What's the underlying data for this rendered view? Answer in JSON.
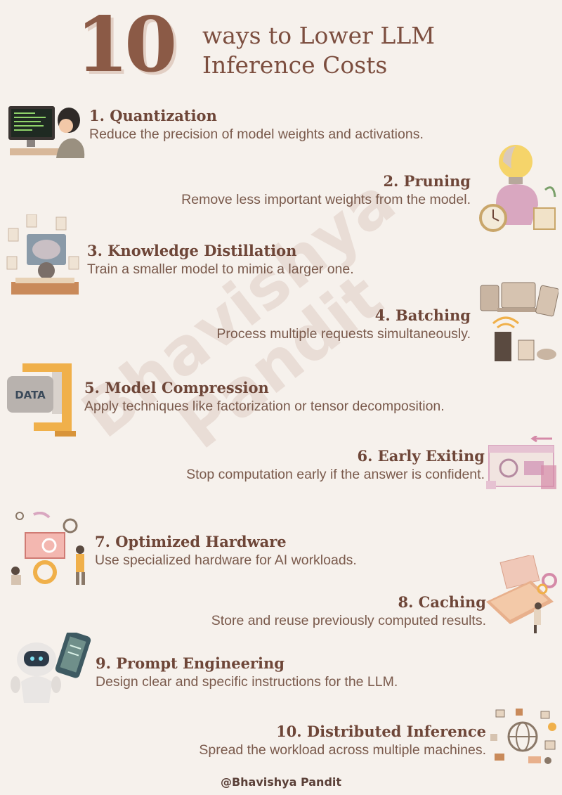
{
  "header": {
    "number": "10",
    "line1": "ways to Lower LLM",
    "line2": "Inference Costs"
  },
  "watermark": {
    "line1": "Bhavishya",
    "line2": "Pandit"
  },
  "items": [
    {
      "title": "1. Quantization",
      "desc": "Reduce the precision of model weights and activations.",
      "icon": "computer-coder-icon"
    },
    {
      "title": "2. Pruning",
      "desc": "Remove less important weights from the model.",
      "icon": "brain-lightbulb-icon"
    },
    {
      "title": "3. Knowledge Distillation",
      "desc": "Train a smaller model to mimic a larger one.",
      "icon": "brain-screen-icon"
    },
    {
      "title": "4. Batching",
      "desc": "Process multiple requests simultaneously.",
      "icon": "devices-router-icon"
    },
    {
      "title": "5.  Model Compression",
      "desc": "Apply techniques like factorization or tensor decomposition.",
      "icon": "data-clamp-icon",
      "badge": "DATA"
    },
    {
      "title": "6. Early Exiting",
      "desc": "Stop computation early if the answer is confident.",
      "icon": "browser-window-icon"
    },
    {
      "title": "7. Optimized Hardware",
      "desc": "Use specialized hardware for AI workloads.",
      "icon": "team-gears-icon"
    },
    {
      "title": "8.  Caching",
      "desc": "Store and reuse previously computed results.",
      "icon": "laptop-gears-icon"
    },
    {
      "title": "9. Prompt Engineering",
      "desc": "Design clear and specific instructions for the LLM.",
      "icon": "robot-icon"
    },
    {
      "title": "10. Distributed Inference",
      "desc": "Spread the workload across multiple machines.",
      "icon": "globe-network-icon"
    }
  ],
  "footer": "@Bhavishya Pandit",
  "colors": {
    "background": "#f6f1ec",
    "heading": "#6e4638",
    "text": "#7a5a4c",
    "accent": "#f0b04a",
    "pink": "#d9a7c0"
  }
}
